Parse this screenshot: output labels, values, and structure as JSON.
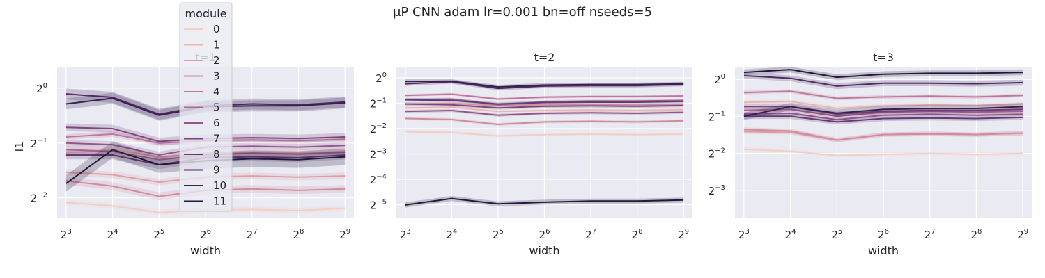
{
  "figure_title": "μP CNN adam lr=0.001 bn=off nseeds=5",
  "colors": {
    "panel_bg": "#eaeaf2",
    "grid": "#ffffff",
    "palette": [
      "#f0d0c4",
      "#e9b6b0",
      "#dd9fa4",
      "#d18b9f",
      "#bf7899",
      "#aa6692",
      "#93568a",
      "#7b477f",
      "#633a73",
      "#4d2d62",
      "#372150",
      "#23173a"
    ]
  },
  "legend": {
    "title": "module",
    "entries": [
      "0",
      "1",
      "2",
      "3",
      "4",
      "5",
      "6",
      "7",
      "8",
      "9",
      "10",
      "11"
    ]
  },
  "chart_data": [
    {
      "type": "line",
      "title": "t=1",
      "xlabel": "width",
      "ylabel": "l1",
      "x_scale": "log2",
      "y_scale": "log2",
      "x": [
        8,
        16,
        32,
        64,
        128,
        256,
        512
      ],
      "x_ticks": [
        {
          "base": "2",
          "exp": "3"
        },
        {
          "base": "2",
          "exp": "4"
        },
        {
          "base": "2",
          "exp": "5"
        },
        {
          "base": "2",
          "exp": "6"
        },
        {
          "base": "2",
          "exp": "7"
        },
        {
          "base": "2",
          "exp": "8"
        },
        {
          "base": "2",
          "exp": "9"
        }
      ],
      "y_ticks": [
        {
          "base": "2",
          "exp": "0"
        },
        {
          "base": "2",
          "exp": "−1"
        },
        {
          "base": "2",
          "exp": "−2"
        }
      ],
      "y_tick_values": [
        1,
        0.5,
        0.25
      ],
      "xlim": [
        7.0,
        585
      ],
      "ylim": [
        0.195,
        1.3
      ],
      "grid": true,
      "series": [
        {
          "name": "0",
          "values": [
            0.236,
            0.226,
            0.208,
            0.214,
            0.216,
            0.213,
            0.219
          ],
          "band": 0.05
        },
        {
          "name": "1",
          "values": [
            0.44,
            0.46,
            0.42,
            0.435,
            0.445,
            0.44,
            0.45
          ],
          "band": 0.05
        },
        {
          "name": "2",
          "values": [
            0.345,
            0.335,
            0.305,
            0.325,
            0.33,
            0.325,
            0.33
          ],
          "band": 0.06
        },
        {
          "name": "3",
          "values": [
            0.31,
            0.29,
            0.255,
            0.275,
            0.28,
            0.275,
            0.28
          ],
          "band": 0.07
        },
        {
          "name": "4",
          "values": [
            0.54,
            0.56,
            0.5,
            0.515,
            0.52,
            0.515,
            0.525
          ],
          "band": 0.05
        },
        {
          "name": "5",
          "values": [
            0.46,
            0.45,
            0.405,
            0.43,
            0.44,
            0.435,
            0.445
          ],
          "band": 0.06
        },
        {
          "name": "6",
          "values": [
            0.5,
            0.49,
            0.43,
            0.475,
            0.48,
            0.475,
            0.485
          ],
          "band": 0.06
        },
        {
          "name": "7",
          "values": [
            0.61,
            0.6,
            0.51,
            0.53,
            0.535,
            0.53,
            0.54
          ],
          "band": 0.07
        },
        {
          "name": "8",
          "values": [
            0.43,
            0.43,
            0.38,
            0.415,
            0.42,
            0.415,
            0.43
          ],
          "band": 0.08
        },
        {
          "name": "9",
          "values": [
            0.93,
            0.89,
            0.72,
            0.8,
            0.82,
            0.81,
            0.84
          ],
          "band": 0.1
        },
        {
          "name": "10",
          "values": [
            0.82,
            0.88,
            0.71,
            0.79,
            0.8,
            0.8,
            0.83
          ],
          "band": 0.1
        },
        {
          "name": "11",
          "values": [
            0.3,
            0.46,
            0.38,
            0.4,
            0.41,
            0.405,
            0.42
          ],
          "band": 0.15
        }
      ]
    },
    {
      "type": "line",
      "title": "t=2",
      "xlabel": "width",
      "ylabel": "",
      "x_scale": "log2",
      "y_scale": "log2",
      "x": [
        8,
        16,
        32,
        64,
        128,
        256,
        512
      ],
      "x_ticks": [
        {
          "base": "2",
          "exp": "3"
        },
        {
          "base": "2",
          "exp": "4"
        },
        {
          "base": "2",
          "exp": "5"
        },
        {
          "base": "2",
          "exp": "6"
        },
        {
          "base": "2",
          "exp": "7"
        },
        {
          "base": "2",
          "exp": "8"
        },
        {
          "base": "2",
          "exp": "9"
        }
      ],
      "y_ticks": [
        {
          "base": "2",
          "exp": "0"
        },
        {
          "base": "2",
          "exp": "−1"
        },
        {
          "base": "2",
          "exp": "−2"
        },
        {
          "base": "2",
          "exp": "−3"
        },
        {
          "base": "2",
          "exp": "−4"
        },
        {
          "base": "2",
          "exp": "−5"
        }
      ],
      "y_tick_values": [
        1,
        0.5,
        0.25,
        0.125,
        0.0625,
        0.03125
      ],
      "xlim": [
        7.0,
        585
      ],
      "ylim": [
        0.022,
        1.33
      ],
      "grid": true,
      "series": [
        {
          "name": "0",
          "values": [
            0.23,
            0.225,
            0.205,
            0.212,
            0.215,
            0.212,
            0.216
          ],
          "band": 0.05
        },
        {
          "name": "1",
          "values": [
            0.44,
            0.45,
            0.4,
            0.41,
            0.415,
            0.41,
            0.42
          ],
          "band": 0.05
        },
        {
          "name": "2",
          "values": [
            0.49,
            0.5,
            0.47,
            0.48,
            0.485,
            0.48,
            0.49
          ],
          "band": 0.05
        },
        {
          "name": "3",
          "values": [
            0.33,
            0.32,
            0.28,
            0.3,
            0.305,
            0.3,
            0.31
          ],
          "band": 0.06
        },
        {
          "name": "4",
          "values": [
            0.62,
            0.64,
            0.56,
            0.59,
            0.6,
            0.6,
            0.61
          ],
          "band": 0.05
        },
        {
          "name": "5",
          "values": [
            0.55,
            0.56,
            0.48,
            0.52,
            0.53,
            0.53,
            0.54
          ],
          "band": 0.06
        },
        {
          "name": "6",
          "values": [
            0.4,
            0.41,
            0.36,
            0.38,
            0.385,
            0.38,
            0.39
          ],
          "band": 0.06
        },
        {
          "name": "7",
          "values": [
            0.49,
            0.48,
            0.44,
            0.46,
            0.465,
            0.46,
            0.47
          ],
          "band": 0.07
        },
        {
          "name": "8",
          "values": [
            0.55,
            0.54,
            0.49,
            0.51,
            0.515,
            0.515,
            0.525
          ],
          "band": 0.07
        },
        {
          "name": "9",
          "values": [
            0.85,
            0.9,
            0.75,
            0.8,
            0.81,
            0.81,
            0.84
          ],
          "band": 0.08
        },
        {
          "name": "10",
          "values": [
            0.91,
            0.91,
            0.78,
            0.82,
            0.83,
            0.83,
            0.85
          ],
          "band": 0.08
        },
        {
          "name": "11",
          "values": [
            0.031,
            0.037,
            0.032,
            0.0335,
            0.0345,
            0.0345,
            0.0355
          ],
          "band": 0.1
        }
      ]
    },
    {
      "type": "line",
      "title": "t=3",
      "xlabel": "width",
      "ylabel": "",
      "x_scale": "log2",
      "y_scale": "log2",
      "x": [
        8,
        16,
        32,
        64,
        128,
        256,
        512
      ],
      "x_ticks": [
        {
          "base": "2",
          "exp": "3"
        },
        {
          "base": "2",
          "exp": "4"
        },
        {
          "base": "2",
          "exp": "5"
        },
        {
          "base": "2",
          "exp": "6"
        },
        {
          "base": "2",
          "exp": "7"
        },
        {
          "base": "2",
          "exp": "8"
        },
        {
          "base": "2",
          "exp": "9"
        }
      ],
      "y_ticks": [
        {
          "base": "2",
          "exp": "0"
        },
        {
          "base": "2",
          "exp": "−1"
        },
        {
          "base": "2",
          "exp": "−2"
        },
        {
          "base": "2",
          "exp": "−3"
        }
      ],
      "y_tick_values": [
        1,
        0.5,
        0.25,
        0.125
      ],
      "xlim": [
        7.0,
        585
      ],
      "ylim": [
        0.075,
        1.25
      ],
      "grid": true,
      "series": [
        {
          "name": "0",
          "values": [
            0.27,
            0.26,
            0.24,
            0.245,
            0.25,
            0.245,
            0.25
          ],
          "band": 0.05
        },
        {
          "name": "1",
          "values": [
            0.65,
            0.66,
            0.58,
            0.61,
            0.62,
            0.61,
            0.63
          ],
          "band": 0.05
        },
        {
          "name": "2",
          "values": [
            0.375,
            0.37,
            0.32,
            0.355,
            0.36,
            0.355,
            0.365
          ],
          "band": 0.06
        },
        {
          "name": "3",
          "values": [
            0.39,
            0.38,
            0.32,
            0.355,
            0.36,
            0.355,
            0.365
          ],
          "band": 0.06
        },
        {
          "name": "4",
          "values": [
            0.78,
            0.8,
            0.7,
            0.72,
            0.73,
            0.72,
            0.74
          ],
          "band": 0.05
        },
        {
          "name": "5",
          "values": [
            0.56,
            0.57,
            0.5,
            0.54,
            0.55,
            0.54,
            0.55
          ],
          "band": 0.06
        },
        {
          "name": "6",
          "values": [
            0.52,
            0.53,
            0.47,
            0.51,
            0.52,
            0.51,
            0.52
          ],
          "band": 0.06
        },
        {
          "name": "7",
          "values": [
            0.6,
            0.6,
            0.52,
            0.55,
            0.56,
            0.56,
            0.57
          ],
          "band": 0.07
        },
        {
          "name": "8",
          "values": [
            0.5,
            0.5,
            0.45,
            0.48,
            0.485,
            0.48,
            0.49
          ],
          "band": 0.07
        },
        {
          "name": "9",
          "values": [
            1.07,
            1.02,
            0.88,
            0.93,
            0.93,
            0.92,
            0.94
          ],
          "band": 0.08
        },
        {
          "name": "10",
          "values": [
            0.5,
            0.6,
            0.53,
            0.57,
            0.58,
            0.58,
            0.6
          ],
          "band": 0.1
        },
        {
          "name": "11",
          "values": [
            1.14,
            1.2,
            1.04,
            1.1,
            1.12,
            1.12,
            1.14
          ],
          "band": 0.08
        }
      ]
    }
  ]
}
